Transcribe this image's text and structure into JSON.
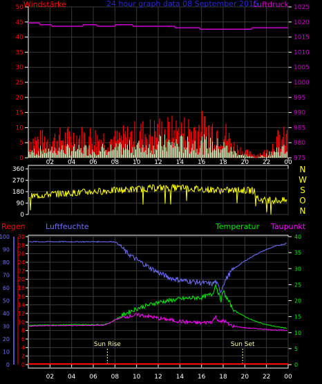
{
  "header": {
    "left_label": "Windstärke",
    "center_title": "24 hour graph data  08 September 2015",
    "right_label": "Luftdruck"
  },
  "colors": {
    "background": "#000000",
    "grid": "#3a3a3a",
    "axis_white": "#ffffff",
    "wind_gust": "#ff0000",
    "wind_avg": "#c8ffc8",
    "pressure": "#cc00cc",
    "direction": "#ffff00",
    "rain": "#ff0000",
    "humidity": "#7070ff",
    "temperature": "#00ee00",
    "dewpoint": "#ff00ff",
    "sun_marker": "#ffff99"
  },
  "chart_data": [
    {
      "type": "line",
      "name": "wind-pressure",
      "x_ticks": [
        "02",
        "04",
        "06",
        "08",
        "10",
        "12",
        "14",
        "16",
        "18",
        "20",
        "22",
        "00"
      ],
      "left_axis": {
        "label": "Windstärke",
        "ticks": [
          0,
          5,
          10,
          15,
          20,
          25,
          30,
          35,
          40,
          45,
          50
        ],
        "ylim": [
          0,
          50
        ]
      },
      "right_axis": {
        "label": "Luftdruck",
        "ticks": [
          975,
          980,
          985,
          990,
          995,
          1000,
          1005,
          1010,
          1015,
          1020,
          1025
        ],
        "ylim": [
          975,
          1025
        ]
      },
      "series": [
        {
          "name": "",
          "axis": "left",
          "hours": [
            0,
            2,
            4,
            6,
            8,
            10,
            12,
            14,
            16,
            18,
            19,
            20,
            21,
            22,
            23,
            24
          ],
          "values": [
            6,
            6,
            7,
            7,
            6,
            8,
            9,
            9,
            10,
            9,
            4,
            2,
            1,
            2,
            6,
            7
          ]
        },
        {
          "name": "",
          "axis": "left",
          "hours": [
            0,
            2,
            4,
            6,
            8,
            10,
            12,
            14,
            16,
            18,
            19,
            20,
            21,
            22,
            23,
            24
          ],
          "values": [
            2,
            3,
            3,
            3,
            3,
            4,
            5,
            5,
            5,
            4,
            2,
            1,
            0,
            1,
            3,
            3
          ]
        },
        {
          "name": "",
          "axis": "right",
          "hours": [
            0,
            1,
            1.1,
            2.1,
            2.2,
            5,
            5.1,
            6.3,
            6.4,
            8,
            8.1,
            9.6,
            9.7,
            13.5,
            13.6,
            15.8,
            15.9,
            20.6,
            20.7,
            24
          ],
          "values": [
            1019.7,
            1019.7,
            1019.1,
            1019.1,
            1018.6,
            1018.6,
            1019.1,
            1019.1,
            1018.6,
            1018.6,
            1019.1,
            1019.1,
            1018.6,
            1018.6,
            1018.1,
            1018.1,
            1017.6,
            1017.6,
            1018.1,
            1018.1
          ]
        }
      ]
    },
    {
      "type": "line",
      "name": "wind-direction",
      "left_axis": {
        "ticks": [
          0,
          90,
          180,
          270,
          360
        ],
        "ylim": [
          0,
          360
        ]
      },
      "right_axis": {
        "ticks": [
          "N",
          "W",
          "S",
          "O",
          "N"
        ]
      },
      "series": [
        {
          "name": "",
          "hours": [
            0,
            2,
            4,
            6,
            8,
            10,
            12,
            14,
            16,
            18,
            20,
            21,
            21.2,
            22,
            24
          ],
          "values": [
            140,
            160,
            170,
            180,
            190,
            200,
            210,
            210,
            200,
            190,
            190,
            190,
            120,
            110,
            110
          ]
        }
      ]
    },
    {
      "type": "line",
      "name": "humidity-temperature",
      "labels": {
        "rain": "Regen",
        "humidity": "Luftfeuchte",
        "temperature": "Temperatur",
        "dewpoint": "Taupunkt"
      },
      "x_ticks": [
        "02",
        "04",
        "06",
        "08",
        "10",
        "12",
        "14",
        "16",
        "18",
        "20",
        "22",
        "00"
      ],
      "humidity_axis": {
        "ticks": [
          0,
          10,
          20,
          30,
          40,
          50,
          60,
          70,
          80,
          90,
          100
        ],
        "ylim": [
          0,
          100
        ]
      },
      "rain_axis": {
        "ticks": [
          0,
          2,
          4,
          6,
          8,
          10,
          12,
          14,
          16,
          18,
          20,
          22,
          24,
          26,
          28,
          30
        ],
        "ylim": [
          0,
          30
        ]
      },
      "temperature_axis": {
        "ticks": [
          0,
          5,
          10,
          15,
          20,
          25,
          30,
          35,
          40
        ],
        "ylim": [
          0,
          40
        ]
      },
      "annotations": [
        {
          "text": "Sun Rise",
          "hour": 7.3
        },
        {
          "text": "Sun Set",
          "hour": 19.8
        }
      ],
      "series": [
        {
          "name": "Regen",
          "hours": [
            0,
            24
          ],
          "values": [
            0,
            0
          ]
        },
        {
          "name": "Luftfeuchte",
          "hours": [
            0,
            6,
            8,
            8.5,
            9,
            10,
            11,
            12,
            13,
            14,
            15,
            16,
            17,
            17.3,
            17.8,
            18,
            18.5,
            19,
            20,
            21,
            22,
            23,
            24
          ],
          "values": [
            96,
            96,
            96,
            93,
            88,
            82,
            77,
            72,
            68,
            66,
            65,
            64,
            63,
            65,
            57,
            63,
            70,
            75,
            81,
            86,
            90,
            93,
            95
          ]
        },
        {
          "name": "Temperatur",
          "hours": [
            0,
            2,
            4,
            6,
            7,
            7.5,
            8,
            9,
            10,
            11,
            12,
            13,
            14,
            15,
            16,
            17,
            17.3,
            17.8,
            18,
            18.3,
            18.8,
            19,
            20,
            21,
            22,
            23,
            24
          ],
          "values": [
            12.3,
            12.4,
            12.5,
            12.5,
            12.5,
            13,
            14,
            16,
            17.5,
            18.5,
            19.5,
            20,
            20.5,
            20.8,
            21,
            22,
            25,
            20,
            23,
            21,
            18,
            17,
            15,
            13.5,
            12.5,
            11.8,
            11.3
          ]
        },
        {
          "name": "Taupunkt",
          "hours": [
            0,
            2,
            4,
            6,
            7,
            7.5,
            8,
            9,
            10,
            11,
            12,
            13,
            14,
            15,
            16,
            17,
            17.3,
            17.8,
            18,
            18.5,
            19,
            20,
            21,
            22,
            23,
            24
          ],
          "values": [
            12,
            12.2,
            12.2,
            12.3,
            12.3,
            13,
            14,
            15,
            15.5,
            15.2,
            14.5,
            14,
            13.5,
            13.2,
            13,
            13.5,
            15,
            13,
            14,
            12.5,
            12,
            11.5,
            11.3,
            11,
            10.8,
            10.7
          ]
        }
      ]
    }
  ]
}
